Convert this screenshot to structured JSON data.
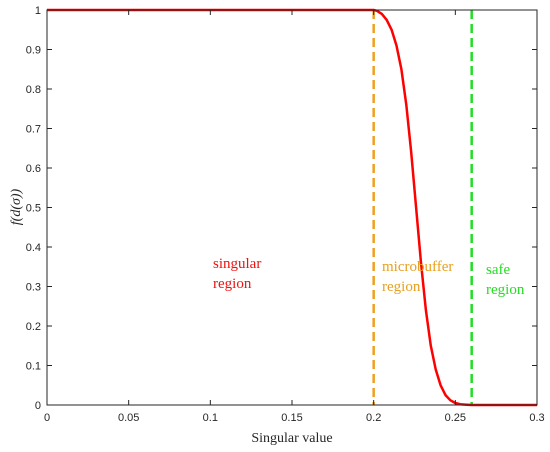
{
  "chart_data": {
    "type": "line",
    "title": "",
    "xlabel": "Singular value",
    "ylabel": "f(d(σ))",
    "xlim": [
      0,
      0.3
    ],
    "ylim": [
      0,
      1
    ],
    "xticks": [
      "0",
      "0.05",
      "0.1",
      "0.15",
      "0.2",
      "0.25",
      "0.3"
    ],
    "yticks": [
      "0",
      "0.1",
      "0.2",
      "0.3",
      "0.4",
      "0.5",
      "0.6",
      "0.7",
      "0.8",
      "0.9",
      "1"
    ],
    "grid": false,
    "series": [
      {
        "color": "#ff0000",
        "x": [
          0,
          0.2,
          0.202,
          0.205,
          0.208,
          0.211,
          0.214,
          0.217,
          0.22,
          0.223,
          0.226,
          0.229,
          0.232,
          0.235,
          0.238,
          0.241,
          0.244,
          0.247,
          0.25,
          0.253,
          0.256,
          0.26,
          0.3
        ],
        "y": [
          1,
          1,
          0.998,
          0.99,
          0.975,
          0.95,
          0.91,
          0.85,
          0.76,
          0.64,
          0.5,
          0.36,
          0.24,
          0.15,
          0.09,
          0.05,
          0.025,
          0.012,
          0.005,
          0.002,
          0.001,
          0,
          0
        ]
      }
    ],
    "vlines": [
      {
        "x": 0.2,
        "color": "#f0a020",
        "style": "dashed"
      },
      {
        "x": 0.26,
        "color": "#22dd22",
        "style": "dashed"
      }
    ],
    "annotations": [
      {
        "lines": [
          "singular",
          "region"
        ],
        "color": "#ee1111"
      },
      {
        "lines": [
          "microbuffer",
          "region"
        ],
        "color": "#e8a020"
      },
      {
        "lines": [
          "safe",
          "region"
        ],
        "color": "#22dd22"
      }
    ]
  }
}
